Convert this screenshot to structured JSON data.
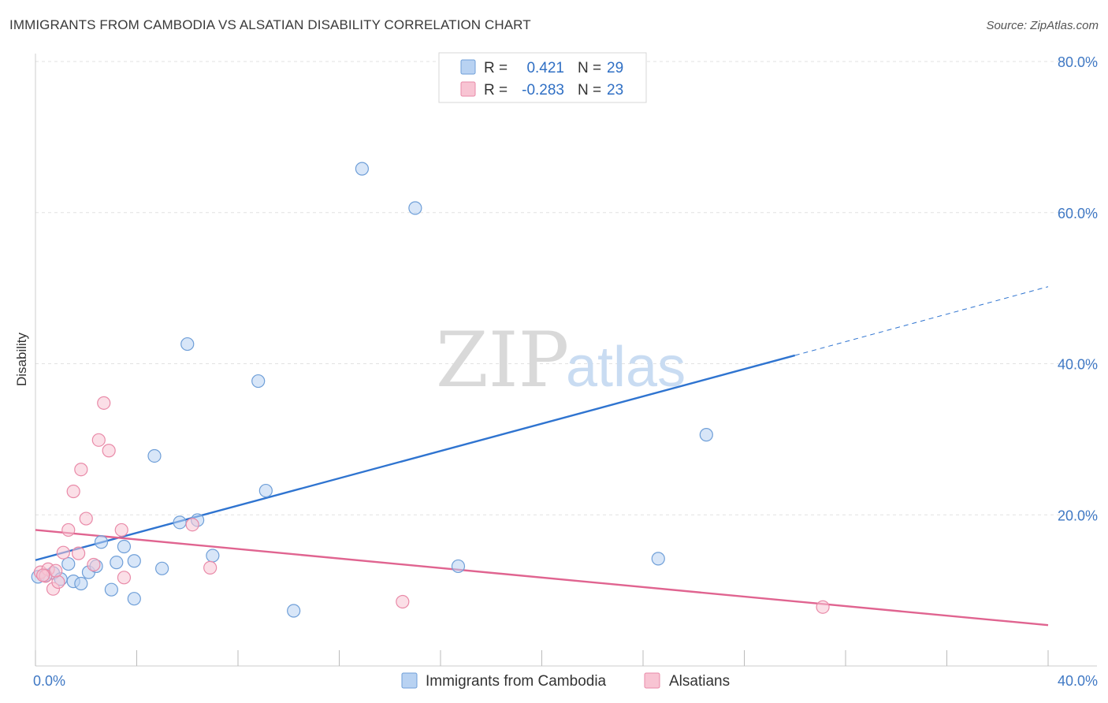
{
  "title": "IMMIGRANTS FROM CAMBODIA VS ALSATIAN DISABILITY CORRELATION CHART",
  "source": "Source: ZipAtlas.com",
  "watermark": {
    "zip": "ZIP",
    "atlas": "atlas"
  },
  "colors": {
    "blue_fill": "#b8d2f2",
    "blue_stroke": "#6f9fd8",
    "blue_line": "#2f74d0",
    "pink_fill": "#f8c4d3",
    "pink_stroke": "#e98aa8",
    "pink_line": "#e06490",
    "tick_text": "#3f78c4",
    "grid": "#e2e2e2"
  },
  "legend": {
    "rows": [
      {
        "r_label": "R =",
        "r_value": "0.421",
        "n_label": "N =",
        "n_value": "29"
      },
      {
        "r_label": "R =",
        "r_value": "-0.283",
        "n_label": "N =",
        "n_value": "23"
      }
    ]
  },
  "chart_data": {
    "type": "scatter",
    "title": "IMMIGRANTS FROM CAMBODIA VS ALSATIAN DISABILITY CORRELATION CHART",
    "xlabel": "",
    "ylabel": "Disability",
    "xlim": [
      0,
      40
    ],
    "ylim": [
      0,
      80
    ],
    "x_tick_labels": [
      "0.0%",
      "40.0%"
    ],
    "y_ticks": [
      20,
      40,
      60,
      80
    ],
    "y_tick_labels": [
      "20.0%",
      "40.0%",
      "60.0%",
      "80.0%"
    ],
    "grid": true,
    "legend_position": "bottom",
    "series": [
      {
        "name": "Immigrants from Cambodia",
        "color": "#6f9fd8",
        "points": [
          [
            0.1,
            11.8
          ],
          [
            0.4,
            12.0
          ],
          [
            0.7,
            12.3
          ],
          [
            1.0,
            11.5
          ],
          [
            1.3,
            13.5
          ],
          [
            1.5,
            11.2
          ],
          [
            1.8,
            10.9
          ],
          [
            2.1,
            12.4
          ],
          [
            2.4,
            13.2
          ],
          [
            2.6,
            16.4
          ],
          [
            3.0,
            10.1
          ],
          [
            3.2,
            13.7
          ],
          [
            3.5,
            15.8
          ],
          [
            3.9,
            8.9
          ],
          [
            3.9,
            13.9
          ],
          [
            4.7,
            27.8
          ],
          [
            5.0,
            12.9
          ],
          [
            5.7,
            19.0
          ],
          [
            6.0,
            42.6
          ],
          [
            6.4,
            19.3
          ],
          [
            7.0,
            14.6
          ],
          [
            8.8,
            37.7
          ],
          [
            9.1,
            23.2
          ],
          [
            10.2,
            7.3
          ],
          [
            12.9,
            65.8
          ],
          [
            15.0,
            60.6
          ],
          [
            16.7,
            13.2
          ],
          [
            24.6,
            14.2
          ],
          [
            26.5,
            30.6
          ]
        ],
        "trend": {
          "x": [
            0,
            30
          ],
          "y": [
            14.0,
            41.1
          ],
          "dashed_extension": {
            "x": [
              30,
              40
            ],
            "y": [
              41.1,
              50.2
            ]
          }
        }
      },
      {
        "name": "Alsatians",
        "color": "#e98aa8",
        "points": [
          [
            0.2,
            12.4
          ],
          [
            0.5,
            12.8
          ],
          [
            0.7,
            10.2
          ],
          [
            0.9,
            11.1
          ],
          [
            1.1,
            15.0
          ],
          [
            1.3,
            18.0
          ],
          [
            1.5,
            23.1
          ],
          [
            1.7,
            14.9
          ],
          [
            1.8,
            26.0
          ],
          [
            2.0,
            19.5
          ],
          [
            2.3,
            13.4
          ],
          [
            2.5,
            29.9
          ],
          [
            2.7,
            34.8
          ],
          [
            2.9,
            28.5
          ],
          [
            3.4,
            18.0
          ],
          [
            3.5,
            11.7
          ],
          [
            6.2,
            18.7
          ],
          [
            6.9,
            13.0
          ],
          [
            14.5,
            8.5
          ],
          [
            31.1,
            7.8
          ],
          [
            0.4,
            11.9
          ],
          [
            0.8,
            12.6
          ],
          [
            0.3,
            12.0
          ]
        ],
        "trend": {
          "x": [
            0,
            40
          ],
          "y": [
            18.0,
            5.4
          ]
        }
      }
    ]
  }
}
